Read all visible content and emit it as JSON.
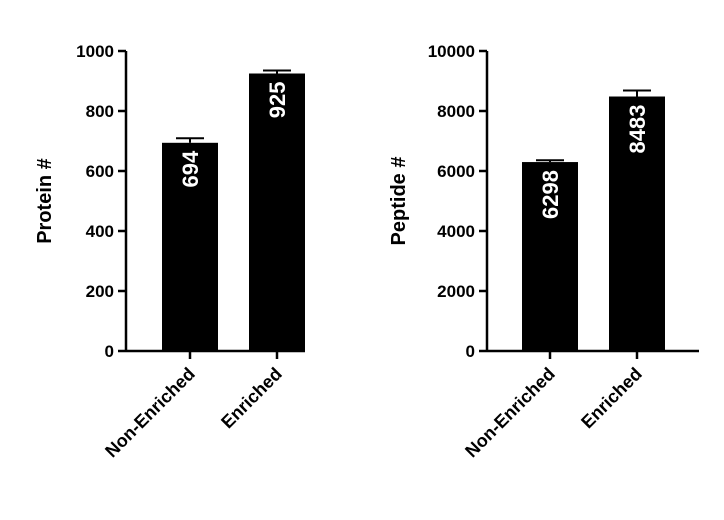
{
  "chart_data": [
    {
      "type": "bar",
      "ylabel": "Protein #",
      "ylim": [
        0,
        1000
      ],
      "yticks": [
        0,
        200,
        400,
        600,
        800,
        1000
      ],
      "categories": [
        "Non-Enriched",
        "Enriched"
      ],
      "values": [
        694,
        925
      ],
      "error": [
        15,
        10
      ],
      "data_labels": [
        "694",
        "925"
      ],
      "bar_color": "#000000",
      "label_color": "#ffffff",
      "grid": false
    },
    {
      "type": "bar",
      "ylabel": "Peptide #",
      "ylim": [
        0,
        10000
      ],
      "yticks": [
        0,
        2000,
        4000,
        6000,
        8000,
        10000
      ],
      "categories": [
        "Non-Enriched",
        "Enriched"
      ],
      "values": [
        6298,
        8483
      ],
      "error": [
        60,
        200
      ],
      "data_labels": [
        "6298",
        "8483"
      ],
      "bar_color": "#000000",
      "label_color": "#ffffff",
      "grid": false
    }
  ]
}
